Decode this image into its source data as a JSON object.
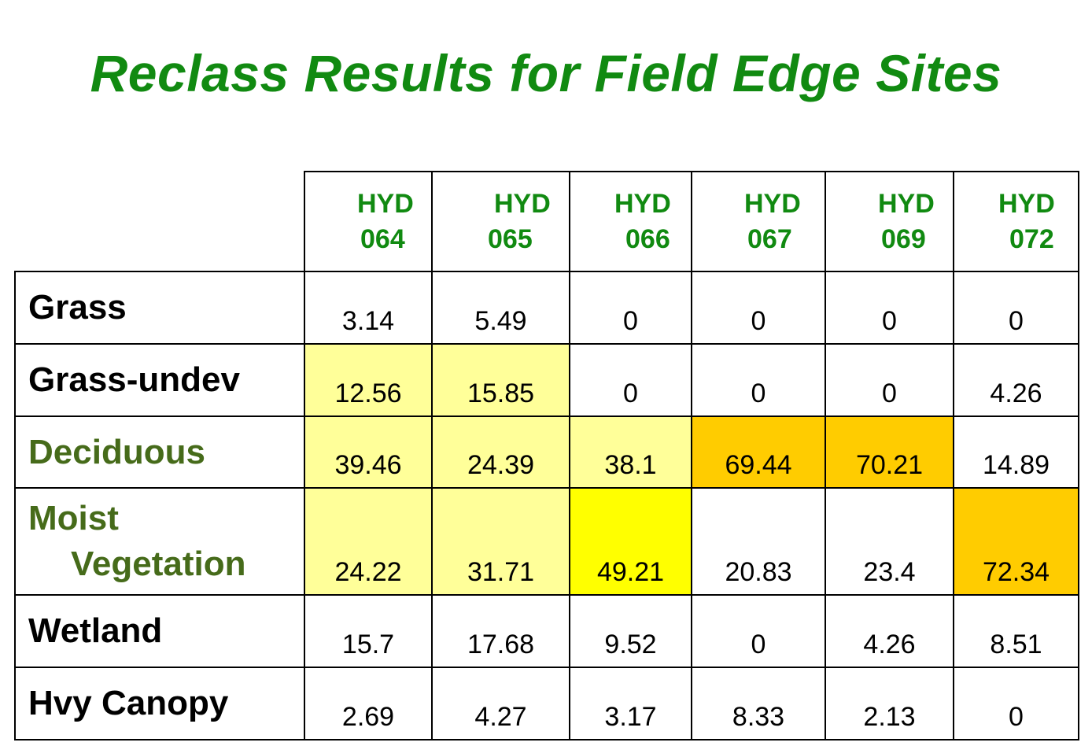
{
  "title": "Reclass Results for Field Edge Sites",
  "columns": [
    {
      "line1": "HYD",
      "line2": "064"
    },
    {
      "line1": "HYD",
      "line2": "065"
    },
    {
      "line1": "HYD",
      "line2": "066"
    },
    {
      "line1": "HYD",
      "line2": "067"
    },
    {
      "line1": "HYD",
      "line2": "069"
    },
    {
      "line1": "HYD",
      "line2": "072"
    }
  ],
  "rows": [
    {
      "label_line1": "Grass",
      "label_line2": "",
      "values": [
        "3.14",
        "5.49",
        "0",
        "0",
        "0",
        "0"
      ]
    },
    {
      "label_line1": "Grass-undev",
      "label_line2": "",
      "values": [
        "12.56",
        "15.85",
        "0",
        "0",
        "0",
        "4.26"
      ]
    },
    {
      "label_line1": "Deciduous",
      "label_line2": "",
      "values": [
        "39.46",
        "24.39",
        "38.1",
        "69.44",
        "70.21",
        "14.89"
      ]
    },
    {
      "label_line1": "Moist",
      "label_line2": "Vegetation",
      "values": [
        "24.22",
        "31.71",
        "49.21",
        "20.83",
        "23.4",
        "72.34"
      ]
    },
    {
      "label_line1": "Wetland",
      "label_line2": "",
      "values": [
        "15.7",
        "17.68",
        "9.52",
        "0",
        "4.26",
        "8.51"
      ]
    },
    {
      "label_line1": "Hvy Canopy",
      "label_line2": "",
      "values": [
        "2.69",
        "4.27",
        "3.17",
        "8.33",
        "2.13",
        "0"
      ]
    }
  ],
  "colors": {
    "title": "#118a11",
    "header_text": "#118a11",
    "green_label": "#466b1a",
    "light_yellow": "#ffff99",
    "yellow": "#ffff00",
    "orange": "#ffcc00"
  }
}
